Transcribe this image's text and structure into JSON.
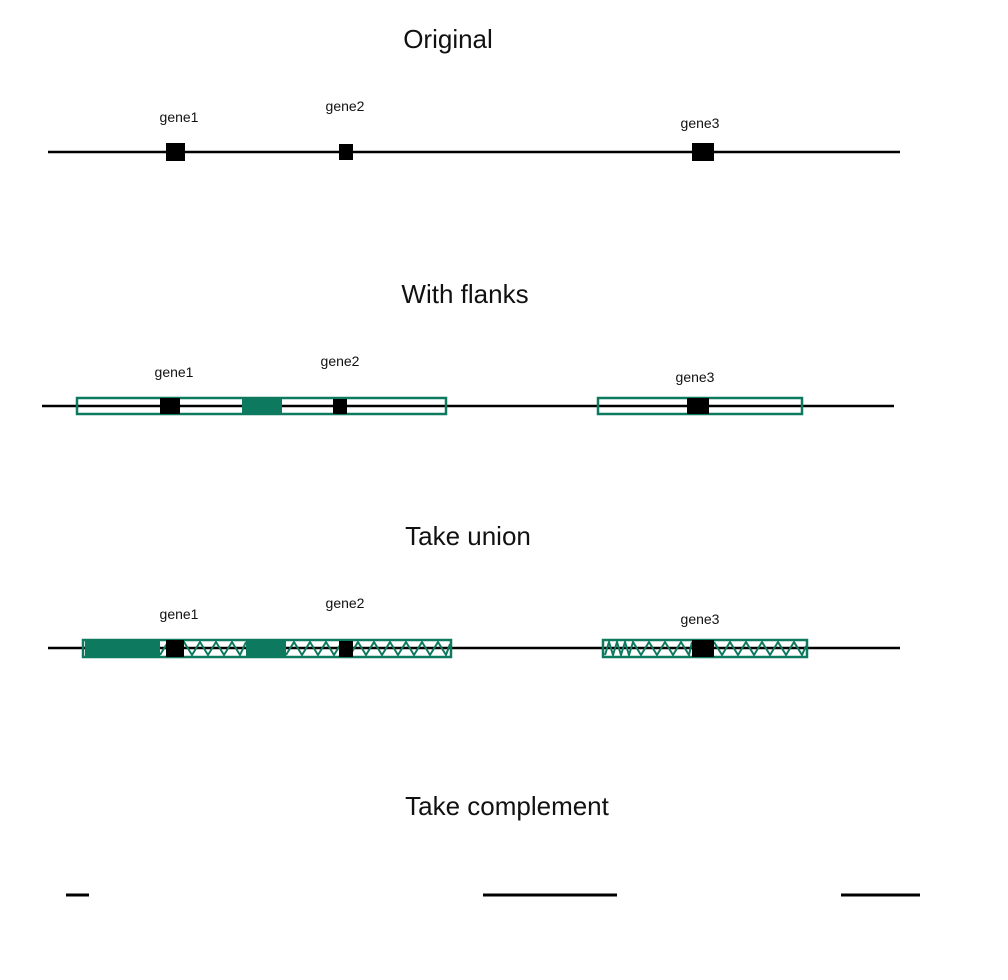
{
  "colors": {
    "line": "#000000",
    "gene": "#000000",
    "flank": "#0d7a5f",
    "background": "#ffffff"
  },
  "panels": [
    {
      "title": "Original",
      "genes": [
        {
          "label": "gene1"
        },
        {
          "label": "gene2"
        },
        {
          "label": "gene3"
        }
      ],
      "flank_style": "none"
    },
    {
      "title": "With flanks",
      "genes": [
        {
          "label": "gene1"
        },
        {
          "label": "gene2"
        },
        {
          "label": "gene3"
        }
      ],
      "flank_style": "outlined boxes"
    },
    {
      "title": "Take union",
      "genes": [
        {
          "label": "gene1"
        },
        {
          "label": "gene2"
        },
        {
          "label": "gene3"
        }
      ],
      "flank_style": "hatched merged boxes"
    },
    {
      "title": "Take complement",
      "genes": [],
      "flank_style": "none"
    }
  ]
}
